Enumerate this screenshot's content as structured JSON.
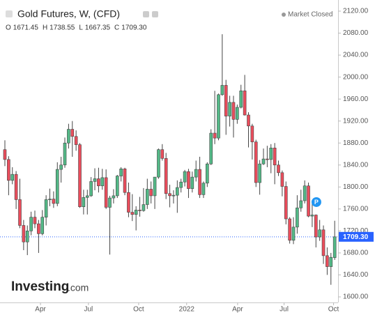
{
  "chart_data": {
    "type": "candlestick",
    "title": "Gold Futures, W, (CFD)",
    "status": "Market Closed",
    "header": [
      {
        "name": "O",
        "value": 1671.45
      },
      {
        "name": "H",
        "value": 1738.55
      },
      {
        "name": "L",
        "value": 1667.35
      },
      {
        "name": "C",
        "value": 1709.3,
        "label": "1709.30"
      }
    ],
    "last_price": {
      "value": 1709.3,
      "label": "1709.30",
      "color": "#2962ff"
    },
    "event_marker": "P",
    "watermark": [
      "Investing",
      ".com"
    ],
    "up_color": "#53b987",
    "down_color": "#eb4d5c",
    "ylim": [
      1600,
      2120
    ],
    "yticks": [
      {
        "value": 1600,
        "label": "1600.00"
      },
      {
        "value": 1640,
        "label": "1640.00"
      },
      {
        "value": 1680,
        "label": "1680.00"
      },
      {
        "value": 1720,
        "label": "1720.00"
      },
      {
        "value": 1760,
        "label": "1760.00"
      },
      {
        "value": 1800,
        "label": "1800.00"
      },
      {
        "value": 1840,
        "label": "1840.00"
      },
      {
        "value": 1880,
        "label": "1880.00"
      },
      {
        "value": 1920,
        "label": "1920.00"
      },
      {
        "value": 1960,
        "label": "1960.00"
      },
      {
        "value": 2000,
        "label": "2000.00"
      },
      {
        "value": 2040,
        "label": "2040.00"
      },
      {
        "value": 2080,
        "label": "2080.00"
      },
      {
        "value": 2120,
        "label": "2120.00"
      }
    ],
    "xlim": [
      -1.3,
      88.9
    ],
    "xticks": [
      {
        "value": 9.5,
        "label": "Apr"
      },
      {
        "value": 22.3,
        "label": "Jul"
      },
      {
        "value": 35.7,
        "label": "Oct"
      },
      {
        "value": 48.5,
        "label": "2022"
      },
      {
        "value": 62.1,
        "label": "Apr"
      },
      {
        "value": 74.5,
        "label": "Jul"
      },
      {
        "value": 87.7,
        "label": "Oct"
      }
    ],
    "open": [
      1868,
      1850,
      1812,
      1823,
      1777,
      1730,
      1700,
      1720,
      1745,
      1733,
      1715,
      1745,
      1777,
      1778,
      1770,
      1832,
      1840,
      1880,
      1905,
      1892,
      1877,
      1764,
      1781,
      1784,
      1810,
      1815,
      1802,
      1817,
      1763,
      1780,
      1784,
      1820,
      1833,
      1790,
      1754,
      1750,
      1758,
      1757,
      1768,
      1796,
      1784,
      1818,
      1868,
      1852,
      1788,
      1784,
      1785,
      1799,
      1809,
      1828,
      1797,
      1818,
      1832,
      1786,
      1807,
      1842,
      1898,
      1889,
      1968,
      1985,
      1929,
      1954,
      1923,
      1945,
      1975,
      1931,
      1911,
      1882,
      1808,
      1842,
      1851,
      1850,
      1871,
      1840,
      1826,
      1801,
      1742,
      1703,
      1727,
      1762,
      1775,
      1802,
      1747,
      1749,
      1709,
      1722,
      1675,
      1655,
      1671.45
    ],
    "high": [
      1885,
      1856,
      1836,
      1829,
      1815,
      1740,
      1730,
      1755,
      1757,
      1740,
      1758,
      1785,
      1797,
      1792,
      1845,
      1855,
      1890,
      1915,
      1920,
      1903,
      1880,
      1795,
      1795,
      1818,
      1834,
      1835,
      1833,
      1832,
      1784,
      1796,
      1822,
      1836,
      1835,
      1808,
      1787,
      1765,
      1782,
      1798,
      1815,
      1810,
      1818,
      1870,
      1878,
      1862,
      1804,
      1794,
      1812,
      1815,
      1831,
      1833,
      1828,
      1848,
      1855,
      1810,
      1845,
      1905,
      1975,
      1970,
      2078,
      1995,
      1966,
      1966,
      1950,
      1986,
      2004,
      1936,
      1915,
      1886,
      1849,
      1870,
      1875,
      1878,
      1880,
      1848,
      1830,
      1810,
      1745,
      1745,
      1785,
      1795,
      1812,
      1808,
      1770,
      1750,
      1740,
      1730,
      1690,
      1680,
      1738.55
    ],
    "low": [
      1838,
      1785,
      1805,
      1760,
      1725,
      1685,
      1676,
      1712,
      1725,
      1680,
      1712,
      1730,
      1765,
      1762,
      1765,
      1808,
      1835,
      1870,
      1855,
      1866,
      1762,
      1750,
      1750,
      1782,
      1794,
      1790,
      1795,
      1760,
      1677,
      1770,
      1780,
      1810,
      1785,
      1745,
      1738,
      1721,
      1746,
      1755,
      1760,
      1770,
      1760,
      1815,
      1848,
      1778,
      1763,
      1770,
      1753,
      1790,
      1801,
      1780,
      1790,
      1810,
      1780,
      1780,
      1800,
      1840,
      1878,
      1885,
      1966,
      1895,
      1910,
      1890,
      1915,
      1943,
      1930,
      1872,
      1850,
      1800,
      1786,
      1840,
      1836,
      1825,
      1805,
      1820,
      1783,
      1732,
      1697,
      1696,
      1715,
      1755,
      1770,
      1745,
      1727,
      1690,
      1702,
      1660,
      1640,
      1622,
      1667.35
    ],
    "close": [
      1850,
      1812,
      1823,
      1777,
      1730,
      1700,
      1720,
      1745,
      1733,
      1715,
      1745,
      1777,
      1778,
      1770,
      1832,
      1840,
      1880,
      1905,
      1892,
      1877,
      1764,
      1781,
      1784,
      1810,
      1815,
      1802,
      1817,
      1763,
      1780,
      1784,
      1820,
      1833,
      1790,
      1754,
      1750,
      1758,
      1757,
      1768,
      1796,
      1784,
      1818,
      1868,
      1852,
      1788,
      1784,
      1785,
      1799,
      1809,
      1828,
      1797,
      1818,
      1832,
      1786,
      1807,
      1842,
      1898,
      1889,
      1968,
      1985,
      1929,
      1954,
      1923,
      1945,
      1975,
      1931,
      1911,
      1882,
      1808,
      1842,
      1851,
      1850,
      1871,
      1840,
      1826,
      1801,
      1742,
      1703,
      1727,
      1762,
      1775,
      1802,
      1747,
      1749,
      1709,
      1722,
      1675,
      1655,
      1672,
      1709.3
    ]
  }
}
